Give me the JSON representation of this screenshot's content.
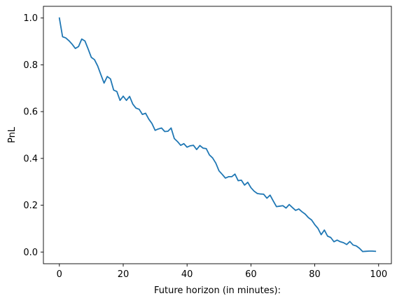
{
  "chart_data": {
    "type": "line",
    "title": "",
    "xlabel": "Future horizon (in minutes):",
    "ylabel": "PnL",
    "xlim": [
      -5.0,
      104.0
    ],
    "ylim": [
      -0.05,
      1.05
    ],
    "xticks": [
      0,
      20,
      40,
      60,
      80,
      100
    ],
    "xtick_labels": [
      "0",
      "20",
      "40",
      "60",
      "80",
      "100"
    ],
    "yticks": [
      0.0,
      0.2,
      0.4,
      0.6,
      0.8,
      1.0
    ],
    "ytick_labels": [
      "0.0",
      "0.2",
      "0.4",
      "0.6",
      "0.8",
      "1.0"
    ],
    "grid": false,
    "colors": {
      "series": "#1f77b4"
    },
    "series": [
      {
        "x": [
          0,
          1,
          2,
          3,
          4,
          5,
          6,
          7,
          8,
          9,
          10,
          11,
          12,
          13,
          14,
          15,
          16,
          17,
          18,
          19,
          20,
          21,
          22,
          23,
          24,
          25,
          26,
          27,
          28,
          29,
          30,
          31,
          32,
          33,
          34,
          35,
          36,
          37,
          38,
          39,
          40,
          41,
          42,
          43,
          44,
          45,
          46,
          47,
          48,
          49,
          50,
          51,
          52,
          53,
          54,
          55,
          56,
          57,
          58,
          59,
          60,
          61,
          62,
          63,
          64,
          65,
          66,
          67,
          68,
          69,
          70,
          71,
          72,
          73,
          74,
          75,
          76,
          77,
          78,
          79,
          80,
          81,
          82,
          83,
          84,
          85,
          86,
          87,
          88,
          89,
          90,
          91,
          92,
          93,
          94,
          95,
          96,
          97,
          98,
          99
        ],
        "values": [
          1.0,
          0.92,
          0.915,
          0.903,
          0.888,
          0.87,
          0.878,
          0.91,
          0.902,
          0.868,
          0.832,
          0.822,
          0.795,
          0.758,
          0.722,
          0.75,
          0.74,
          0.692,
          0.686,
          0.648,
          0.666,
          0.648,
          0.665,
          0.632,
          0.615,
          0.61,
          0.588,
          0.593,
          0.568,
          0.549,
          0.52,
          0.526,
          0.53,
          0.515,
          0.516,
          0.53,
          0.485,
          0.472,
          0.456,
          0.463,
          0.448,
          0.454,
          0.456,
          0.438,
          0.455,
          0.444,
          0.442,
          0.415,
          0.402,
          0.38,
          0.347,
          0.332,
          0.316,
          0.322,
          0.322,
          0.333,
          0.305,
          0.307,
          0.286,
          0.298,
          0.275,
          0.26,
          0.25,
          0.248,
          0.247,
          0.23,
          0.243,
          0.218,
          0.194,
          0.196,
          0.198,
          0.188,
          0.203,
          0.19,
          0.178,
          0.184,
          0.172,
          0.162,
          0.147,
          0.137,
          0.117,
          0.101,
          0.074,
          0.094,
          0.068,
          0.062,
          0.044,
          0.051,
          0.044,
          0.04,
          0.032,
          0.045,
          0.03,
          0.026,
          0.016,
          0.002,
          0.003,
          0.004,
          0.004,
          0.003
        ]
      }
    ]
  }
}
